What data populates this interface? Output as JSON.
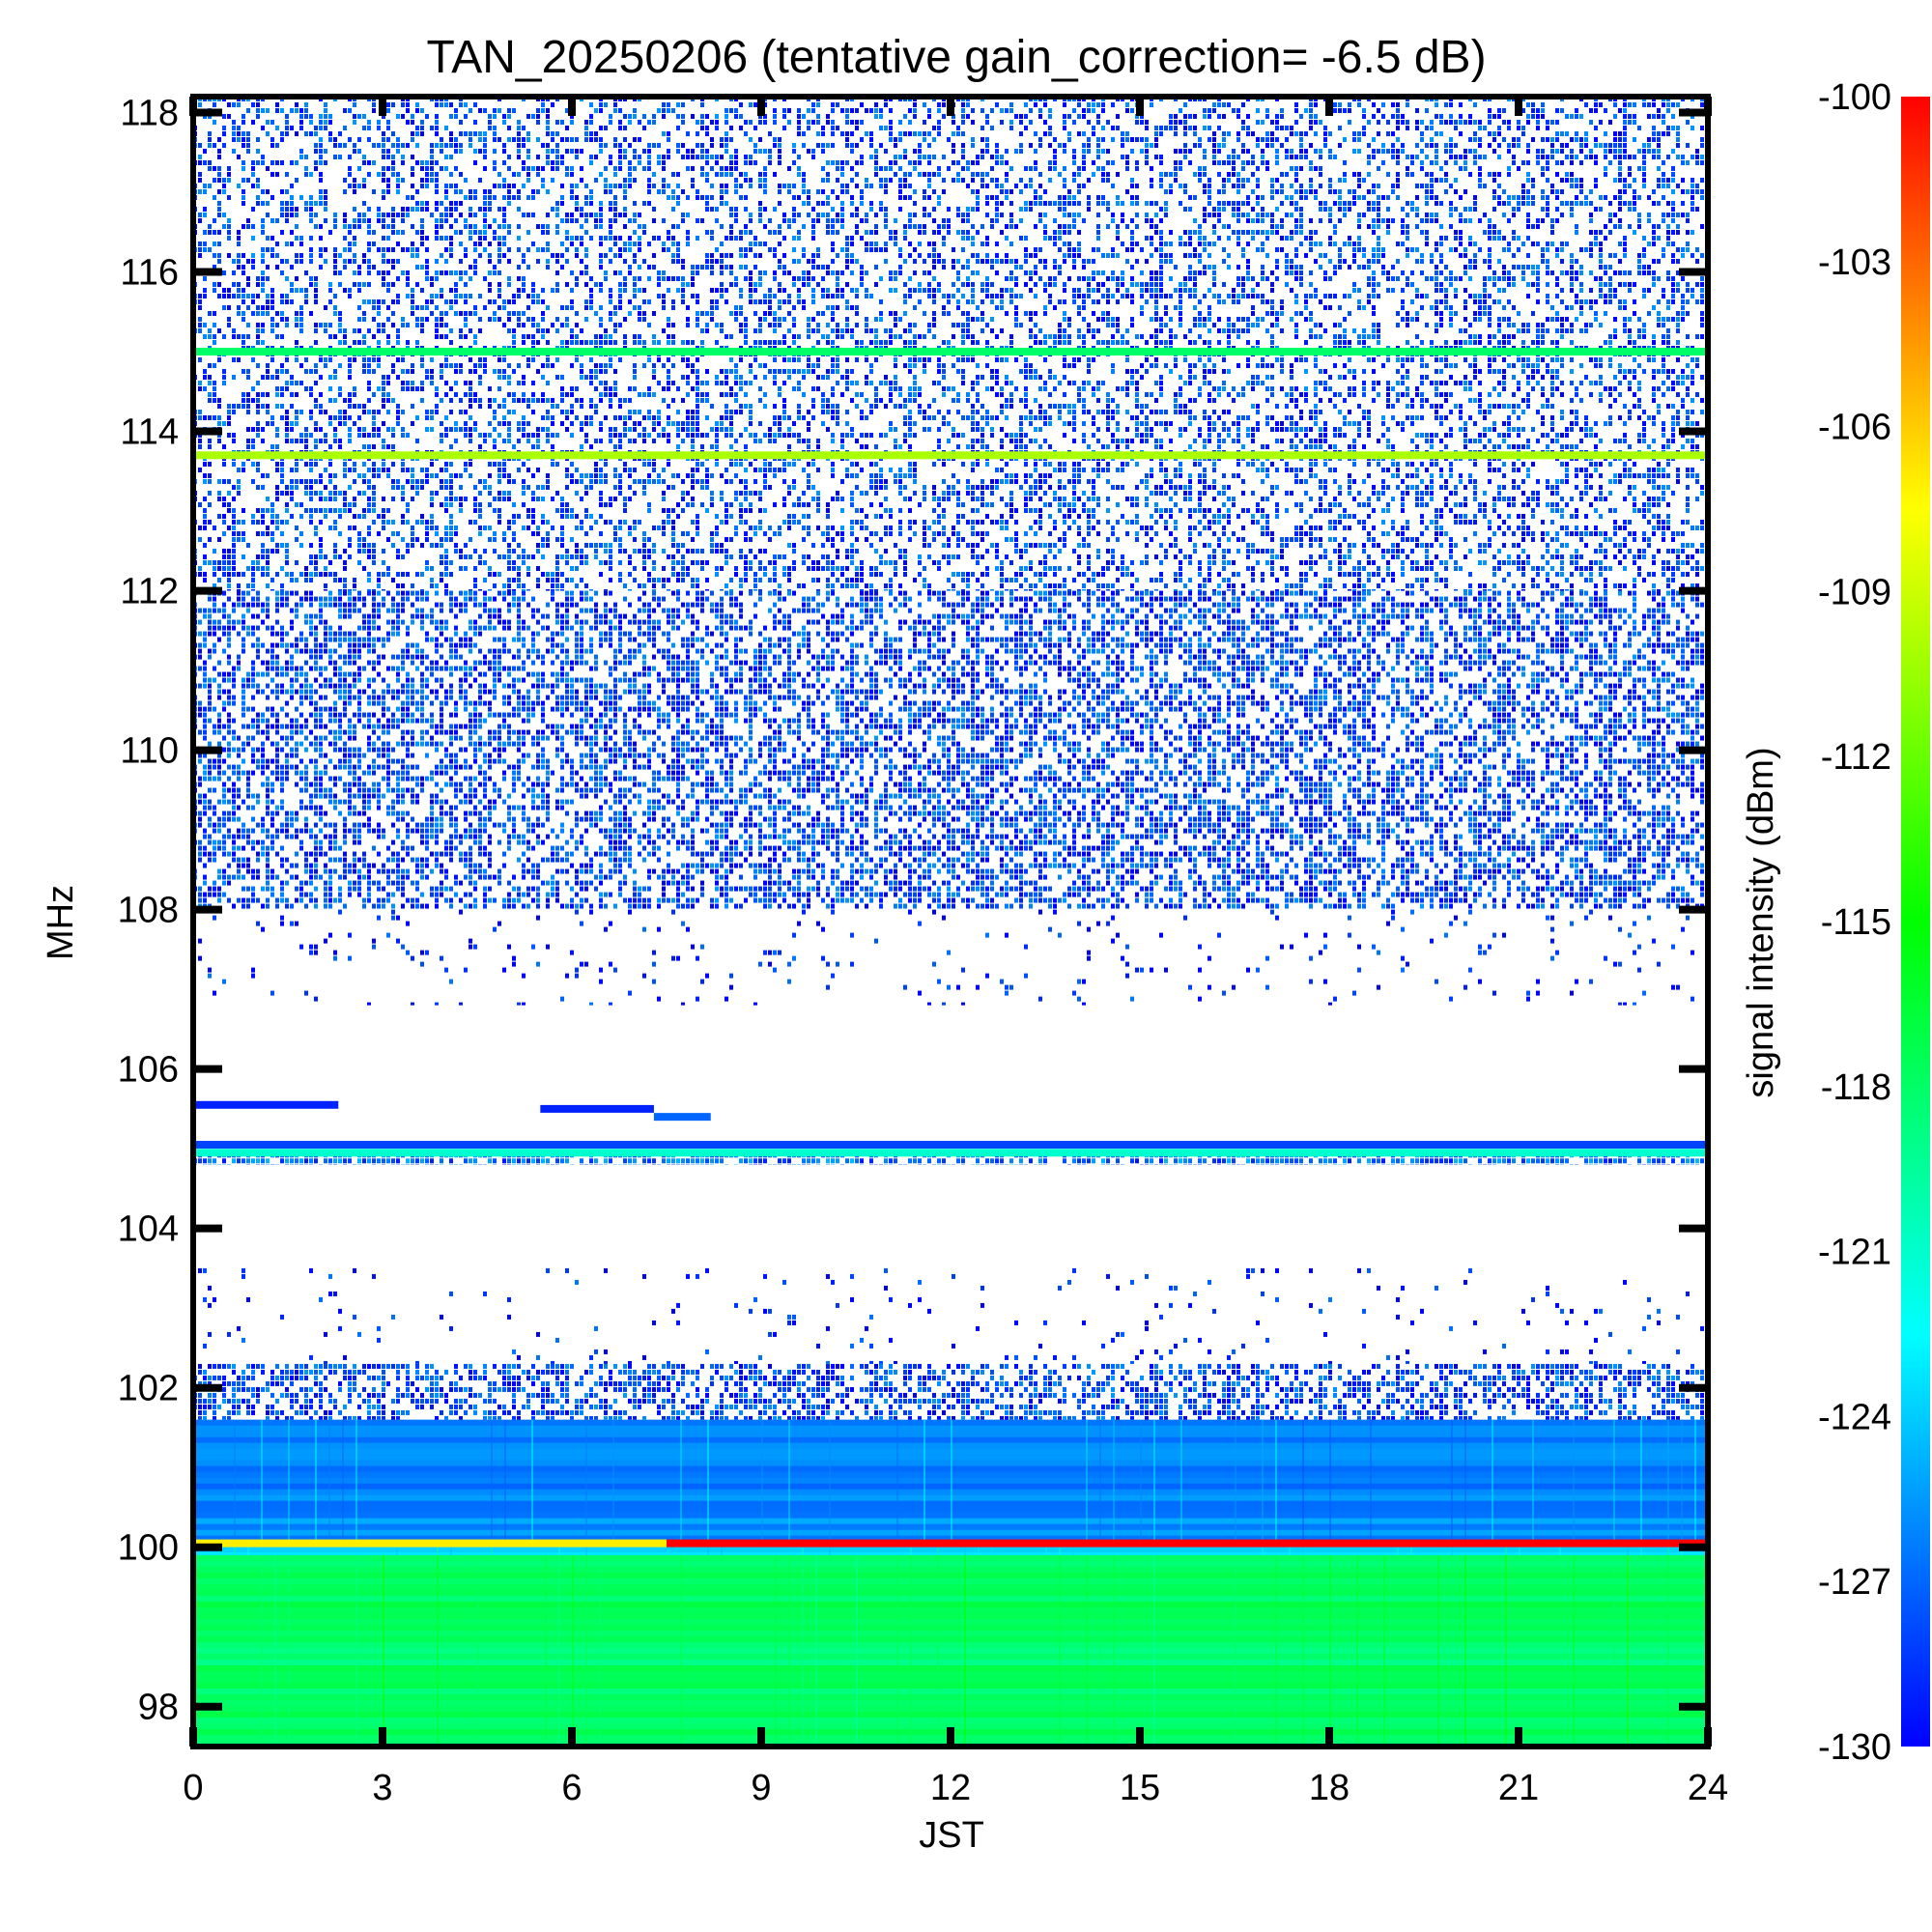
{
  "chart_data": {
    "type": "heatmap",
    "title": "TAN_20250206 (tentative gain_correction= -6.5 dB)",
    "xlabel": "JST",
    "ylabel": "MHz",
    "colorbar_label": "signal intensity (dBm)",
    "xlim": [
      0,
      24
    ],
    "ylim": [
      97.5,
      118.2
    ],
    "x_ticks": [
      0,
      3,
      6,
      9,
      12,
      15,
      18,
      21,
      24
    ],
    "x_tick_labels": [
      "0",
      "3",
      "6",
      "9",
      "12",
      "15",
      "18",
      "21",
      "24"
    ],
    "y_ticks": [
      98,
      100,
      102,
      104,
      106,
      108,
      110,
      112,
      114,
      116,
      118
    ],
    "y_tick_labels": [
      "98",
      "100",
      "102",
      "104",
      "106",
      "108",
      "110",
      "112",
      "114",
      "116",
      "118"
    ],
    "colorbar_range": [
      -130,
      -100
    ],
    "colorbar_ticks": [
      -100,
      -103,
      -106,
      -109,
      -112,
      -115,
      -118,
      -121,
      -124,
      -127,
      -130
    ],
    "colorbar_tick_labels": [
      "-100",
      "-103",
      "-106",
      "-109",
      "-112",
      "-115",
      "-118",
      "-121",
      "-124",
      "-127",
      "-130"
    ],
    "colormap": [
      "#0000ff",
      "#0080ff",
      "#00ffff",
      "#00ff80",
      "#00ff00",
      "#80ff00",
      "#ffff00",
      "#ff8000",
      "#ff0000"
    ],
    "bands": [
      {
        "from_mhz": 97.5,
        "to_mhz": 99.9,
        "start_jst": 0,
        "end_jst": 24,
        "dbm": -118,
        "density": 1.0
      },
      {
        "from_mhz": 99.9,
        "to_mhz": 100.08,
        "start_jst": 0,
        "end_jst": 24,
        "dbm": -123,
        "density": 1.0
      },
      {
        "from_mhz": 100.08,
        "to_mhz": 101.6,
        "start_jst": 0,
        "end_jst": 24,
        "dbm": -126,
        "density": 1.0
      },
      {
        "from_mhz": 101.6,
        "to_mhz": 102.3,
        "start_jst": 0,
        "end_jst": 24,
        "dbm": -128,
        "density": 0.55
      },
      {
        "from_mhz": 102.3,
        "to_mhz": 103.5,
        "start_jst": 0,
        "end_jst": 24,
        "dbm": -129,
        "density": 0.04
      },
      {
        "from_mhz": 104.8,
        "to_mhz": 104.95,
        "start_jst": 0,
        "end_jst": 24,
        "dbm": -127,
        "density": 0.7
      },
      {
        "from_mhz": 106.8,
        "to_mhz": 108.0,
        "start_jst": 0,
        "end_jst": 24,
        "dbm": -129,
        "density": 0.05
      },
      {
        "from_mhz": 108.0,
        "to_mhz": 112.0,
        "start_jst": 0,
        "end_jst": 24,
        "dbm": -128,
        "density": 0.55
      },
      {
        "from_mhz": 112.0,
        "to_mhz": 118.2,
        "start_jst": 0,
        "end_jst": 24,
        "dbm": -128,
        "density": 0.4
      }
    ],
    "lines": [
      {
        "mhz": 100.05,
        "start_jst": 0,
        "end_jst": 7.5,
        "dbm": -107
      },
      {
        "mhz": 100.05,
        "start_jst": 7.5,
        "end_jst": 24,
        "dbm": -100
      },
      {
        "mhz": 105.05,
        "start_jst": 0,
        "end_jst": 24,
        "dbm": -128
      },
      {
        "mhz": 104.95,
        "start_jst": 0,
        "end_jst": 24,
        "dbm": -121
      },
      {
        "mhz": 105.55,
        "start_jst": 0,
        "end_jst": 2.3,
        "dbm": -129
      },
      {
        "mhz": 105.5,
        "start_jst": 5.5,
        "end_jst": 7.3,
        "dbm": -129
      },
      {
        "mhz": 105.4,
        "start_jst": 7.3,
        "end_jst": 8.2,
        "dbm": -127
      },
      {
        "mhz": 113.7,
        "start_jst": 0,
        "end_jst": 24,
        "dbm": -110
      },
      {
        "mhz": 115.0,
        "start_jst": 0,
        "end_jst": 24,
        "dbm": -118
      }
    ]
  }
}
